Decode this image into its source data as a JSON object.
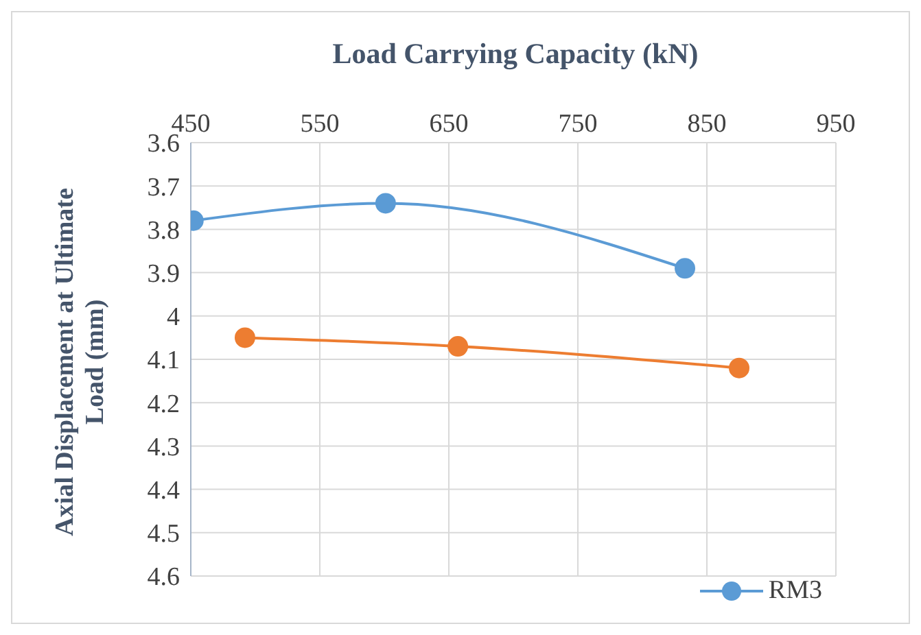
{
  "chart_data": {
    "type": "line",
    "title": "Load Carrying Capacity (kN)",
    "ylabel": "Axial Displacement  at Ultimate Load (mm)",
    "series": [
      {
        "name": "RM3",
        "color": "#5b9bd5",
        "x": [
          452,
          601,
          833
        ],
        "values": [
          3.78,
          3.74,
          3.89
        ]
      },
      {
        "color": "#ed7d31",
        "x": [
          492,
          657,
          875
        ],
        "values": [
          4.05,
          4.07,
          4.12
        ]
      }
    ],
    "xlim": [
      450,
      950
    ],
    "xticks": [
      450,
      550,
      650,
      750,
      850,
      950
    ],
    "ylim": [
      4.6,
      3.6
    ],
    "yticks": [
      3.6,
      3.7,
      3.8,
      3.9,
      4,
      4.1,
      4.2,
      4.3,
      4.4,
      4.5,
      4.6
    ],
    "grid": true,
    "legend": "bottom right",
    "marker": "circle",
    "line_style": "solid"
  }
}
